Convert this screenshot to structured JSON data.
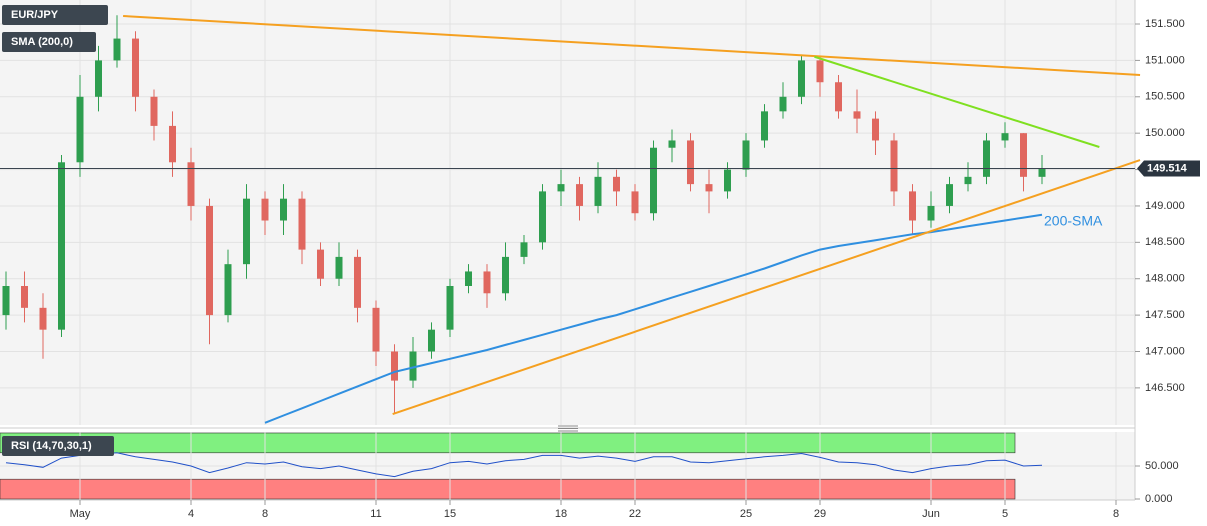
{
  "chart_data": [
    {
      "type": "candlestick",
      "title": "EUR/JPY",
      "categories": [
        null,
        null,
        null,
        null,
        "May",
        null,
        null,
        null,
        null,
        null,
        "4",
        null,
        null,
        null,
        "8",
        null,
        null,
        null,
        null,
        null,
        "11",
        null,
        null,
        null,
        "15",
        null,
        null,
        null,
        null,
        null,
        "18",
        null,
        null,
        null,
        "22",
        null,
        null,
        null,
        null,
        null,
        "25",
        null,
        null,
        null,
        "29",
        null,
        null,
        null,
        null,
        null,
        "Jun",
        null,
        null,
        null,
        "5",
        null,
        null,
        null,
        null,
        null,
        "8"
      ],
      "open": [
        147.5,
        147.9,
        147.6,
        147.3,
        149.6,
        150.5,
        151.0,
        151.3,
        150.5,
        150.1,
        149.6,
        149.0,
        147.5,
        148.2,
        149.1,
        148.8,
        149.1,
        148.4,
        148.0,
        148.3,
        147.6,
        147.0,
        146.6,
        147.0,
        147.3,
        147.9,
        148.1,
        147.8,
        148.3,
        148.5,
        149.2,
        149.3,
        149.0,
        149.4,
        149.2,
        148.9,
        149.8,
        149.9,
        149.3,
        149.2,
        149.5,
        149.9,
        150.3,
        150.5,
        151.0,
        150.7,
        150.3,
        150.2,
        149.9,
        149.2,
        148.8,
        149.0,
        149.3,
        149.4,
        149.9,
        150.0,
        149.4,
        null,
        null,
        null,
        null
      ],
      "high": [
        148.1,
        148.1,
        147.8,
        149.7,
        150.8,
        151.2,
        151.62,
        151.4,
        150.6,
        150.3,
        149.8,
        149.1,
        148.4,
        149.3,
        149.2,
        149.3,
        149.2,
        148.5,
        148.5,
        148.4,
        147.7,
        147.1,
        147.2,
        147.4,
        148.0,
        148.2,
        148.2,
        148.5,
        148.6,
        149.3,
        149.5,
        149.4,
        149.6,
        149.5,
        149.3,
        149.9,
        150.05,
        150.0,
        149.5,
        149.6,
        150.0,
        150.4,
        150.7,
        151.08,
        151.05,
        150.8,
        150.6,
        150.3,
        150.0,
        149.3,
        149.2,
        149.4,
        149.6,
        150.0,
        150.15,
        150.0,
        149.7,
        null,
        null,
        null,
        null
      ],
      "low": [
        147.3,
        147.4,
        146.9,
        147.2,
        149.4,
        150.3,
        150.9,
        150.3,
        149.9,
        149.4,
        148.8,
        147.1,
        147.4,
        148.0,
        148.6,
        148.6,
        148.2,
        147.9,
        147.9,
        147.4,
        146.8,
        146.15,
        146.5,
        146.9,
        147.2,
        147.8,
        147.6,
        147.7,
        148.2,
        148.4,
        149.0,
        148.8,
        148.9,
        149.0,
        148.8,
        148.8,
        149.6,
        149.2,
        148.9,
        149.1,
        149.4,
        149.8,
        150.2,
        150.4,
        150.5,
        150.2,
        150.0,
        149.7,
        149.0,
        148.6,
        148.7,
        148.9,
        149.2,
        149.3,
        149.8,
        149.2,
        149.3,
        null,
        null,
        null,
        null
      ],
      "close": [
        147.9,
        147.6,
        147.3,
        149.6,
        150.5,
        151.0,
        151.3,
        150.5,
        150.1,
        149.6,
        149.0,
        147.5,
        148.2,
        149.1,
        148.8,
        149.1,
        148.4,
        148.0,
        148.3,
        147.6,
        147.0,
        146.6,
        147.0,
        147.3,
        147.9,
        148.1,
        147.8,
        148.3,
        148.5,
        149.2,
        149.3,
        149.0,
        149.4,
        149.2,
        148.9,
        149.8,
        149.9,
        149.3,
        149.2,
        149.5,
        149.9,
        150.3,
        150.5,
        151.0,
        150.7,
        150.3,
        150.2,
        149.9,
        149.2,
        148.8,
        149.0,
        149.3,
        149.4,
        149.9,
        150.0,
        149.4,
        149.51,
        null,
        null,
        null,
        null
      ],
      "up_color": "#2e9e4f",
      "down_color": "#e0675f",
      "series": [
        {
          "name": "SMA (200,0)",
          "color": "#2f8fe0",
          "values": [
            null,
            null,
            null,
            null,
            null,
            null,
            null,
            null,
            null,
            null,
            null,
            null,
            null,
            null,
            146.02,
            146.12,
            146.22,
            146.32,
            146.42,
            146.52,
            146.62,
            146.72,
            146.78,
            146.84,
            146.9,
            146.96,
            147.02,
            147.09,
            147.16,
            147.23,
            147.3,
            147.37,
            147.44,
            147.5,
            147.58,
            147.66,
            147.74,
            147.82,
            147.9,
            147.98,
            148.06,
            148.14,
            148.23,
            148.32,
            148.4,
            148.45,
            148.49,
            148.53,
            148.57,
            148.61,
            148.64,
            148.68,
            148.72,
            148.76,
            148.8,
            148.84,
            148.88,
            null,
            null,
            null,
            null
          ]
        }
      ],
      "sma_label": "200-SMA",
      "last_price": 149.514,
      "trendlines": [
        {
          "color": "#f5a020",
          "points": [
            [
              6.33,
              151.61
            ],
            [
              61.3,
              150.8
            ]
          ]
        },
        {
          "color": "#7fe020",
          "points": [
            [
              43.7,
              151.05
            ],
            [
              59.1,
              149.81
            ]
          ]
        },
        {
          "color": "#f5a020",
          "points": [
            [
              20.9,
              146.14
            ],
            [
              61.3,
              149.63
            ]
          ]
        }
      ],
      "ylim": [
        145.99,
        151.83
      ],
      "yticks": [
        {
          "value": 146.5,
          "label": "146.500"
        },
        {
          "value": 147,
          "label": "147.000"
        },
        {
          "value": 147.5,
          "label": "147.500"
        },
        {
          "value": 148,
          "label": "148.000"
        },
        {
          "value": 148.5,
          "label": "148.500"
        },
        {
          "value": 149,
          "label": "149.000"
        },
        {
          "value": 149.5,
          "label": "149.500"
        },
        {
          "value": 150,
          "label": "150.000"
        },
        {
          "value": 150.5,
          "label": "150.500"
        },
        {
          "value": 151,
          "label": "151.000"
        },
        {
          "value": 151.5,
          "label": "151.500"
        }
      ],
      "grid": true
    },
    {
      "type": "line",
      "title": "RSI (14,70,30,1)",
      "color": "#2050c8",
      "values": [
        55,
        52,
        48,
        62,
        66,
        68,
        70,
        64,
        60,
        56,
        50,
        40,
        47,
        55,
        53,
        56,
        49,
        46,
        50,
        44,
        38,
        34,
        42,
        46,
        55,
        57,
        53,
        58,
        60,
        66,
        66,
        62,
        65,
        62,
        57,
        64,
        64,
        56,
        55,
        58,
        61,
        64,
        66,
        69,
        63,
        56,
        55,
        52,
        44,
        40,
        46,
        50,
        52,
        58,
        59,
        50,
        51,
        null,
        null,
        null,
        null
      ],
      "bands": [
        {
          "from": 70,
          "to": 100,
          "color": "#80f080"
        },
        {
          "from": 0,
          "to": 30,
          "color": "#ff8080"
        }
      ],
      "ylim": [
        0,
        100
      ],
      "yticks": [
        {
          "value": 0,
          "label": "0.000"
        },
        {
          "value": 50,
          "label": "50.000"
        }
      ],
      "grid": true
    }
  ]
}
